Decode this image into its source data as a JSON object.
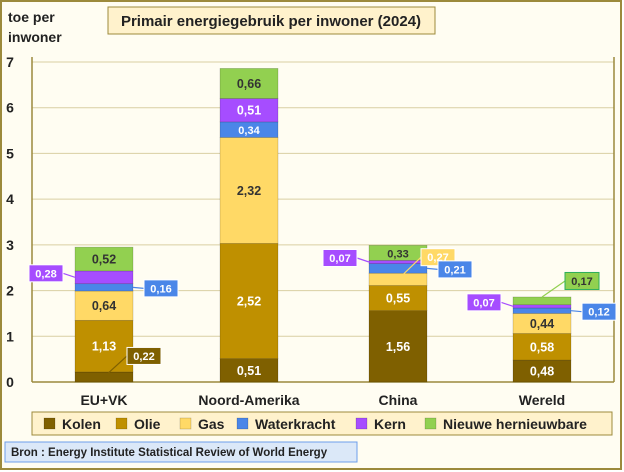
{
  "chart_data": {
    "type": "bar",
    "stacked": true,
    "title": "Primair energiegebruik per inwoner (2024)",
    "ylabel": "toe per inwoner",
    "xlabel": "",
    "ylim": [
      0,
      7
    ],
    "yticks": [
      "0",
      "1",
      "2",
      "3",
      "4",
      "5",
      "6",
      "7"
    ],
    "grid": true,
    "legend_position": "bottom",
    "categories": [
      "EU+VK",
      "Noord-Amerika",
      "China",
      "Wereld"
    ],
    "series": [
      {
        "name": "Kolen",
        "color": "#7f6000",
        "values": [
          0.22,
          0.51,
          1.56,
          0.48
        ],
        "labels": [
          "0,22",
          "0,51",
          "1,56",
          "0,48"
        ]
      },
      {
        "name": "Olie",
        "color": "#bf9000",
        "values": [
          1.13,
          2.52,
          0.55,
          0.58
        ],
        "labels": [
          "1,13",
          "2,52",
          "0,55",
          "0,58"
        ]
      },
      {
        "name": "Gas",
        "color": "#ffd966",
        "values": [
          0.64,
          2.32,
          0.27,
          0.44
        ],
        "labels": [
          "0,64",
          "2,32",
          "0,27",
          "0,44"
        ]
      },
      {
        "name": "Waterkracht",
        "color": "#4a86e8",
        "values": [
          0.16,
          0.34,
          0.21,
          0.12
        ],
        "labels": [
          "0,16",
          "0,34",
          "0,21",
          "0,12"
        ]
      },
      {
        "name": "Kern",
        "color": "#a64dff",
        "values": [
          0.28,
          0.51,
          0.07,
          0.07
        ],
        "labels": [
          "0,28",
          "0,51",
          "0,07",
          "0,07"
        ]
      },
      {
        "name": "Nieuwe hernieuwbare",
        "color": "#92d050",
        "values": [
          0.52,
          0.66,
          0.33,
          0.17
        ],
        "labels": [
          "0,52",
          "0,66",
          "0,33",
          "0,17"
        ]
      }
    ],
    "source": "Bron : Energy Institute Statistical Review of World Energy"
  }
}
